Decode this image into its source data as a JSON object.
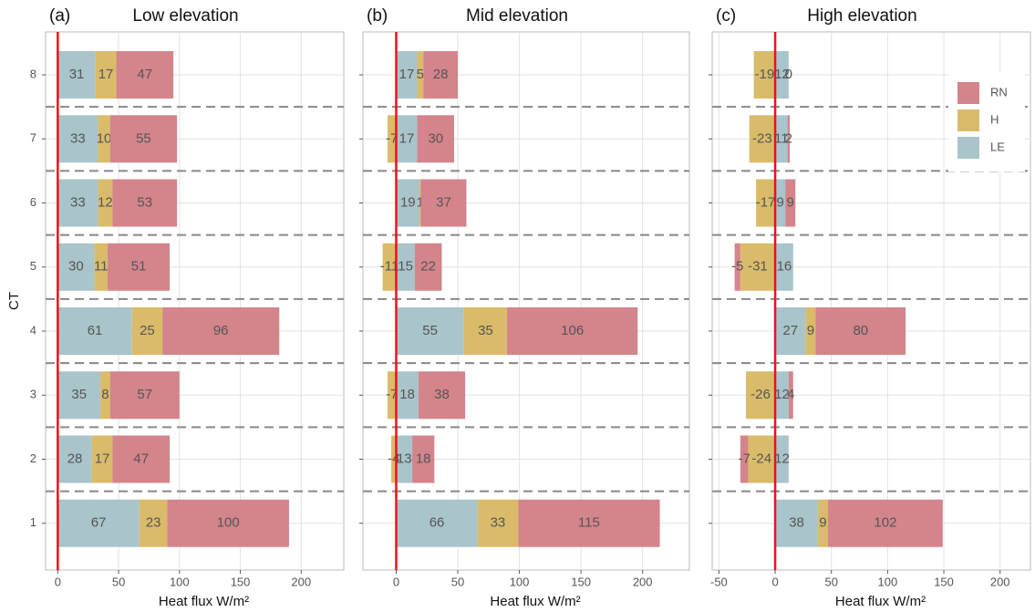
{
  "chart_data": [
    {
      "type": "bar",
      "orientation": "horizontal",
      "stacked": true,
      "tag": "(a)",
      "title": "Low elevation",
      "ylabel": "CT",
      "xlabel": "Heat flux  W/m²",
      "categories": [
        "1",
        "2",
        "3",
        "4",
        "5",
        "6",
        "7",
        "8"
      ],
      "xlim": [
        -10,
        235
      ],
      "xticks": [
        0,
        50,
        100,
        150,
        200
      ],
      "grid": true,
      "separators": true,
      "zero_line_color": "#e8141c",
      "series": [
        {
          "color": "#a9c4cb",
          "values": [
            67,
            28,
            35,
            61,
            30,
            33,
            33,
            31
          ]
        },
        {
          "color": "#d9bb6a",
          "values": [
            23,
            17,
            8,
            25,
            11,
            12,
            10,
            17
          ]
        },
        {
          "color": "#d4848b",
          "values": [
            100,
            47,
            57,
            96,
            51,
            53,
            55,
            47
          ]
        }
      ]
    },
    {
      "type": "bar",
      "orientation": "horizontal",
      "stacked": true,
      "tag": "(b)",
      "title": "Mid elevation",
      "xlabel": "Heat flux  W/m²",
      "xlim": [
        -27,
        238
      ],
      "xticks": [
        0,
        50,
        100,
        150,
        200
      ],
      "grid": true,
      "separators": true,
      "zero_line_color": "#e8141c",
      "series": [
        {
          "color": "#a9c4cb",
          "values": [
            66,
            13,
            18,
            55,
            15,
            19,
            17,
            17
          ]
        },
        {
          "color": "#d9bb6a",
          "values": [
            33,
            -4,
            -7,
            35,
            -11,
            1,
            -7,
            5
          ]
        },
        {
          "color": "#d4848b",
          "values": [
            115,
            18,
            38,
            106,
            22,
            37,
            30,
            28
          ]
        }
      ]
    },
    {
      "type": "bar",
      "orientation": "horizontal",
      "stacked": true,
      "tag": "(c)",
      "title": "High elevation",
      "xlabel": "Heat flux  W/m²",
      "legend": "top-right",
      "xlim": [
        -56,
        227
      ],
      "xticks": [
        -50,
        0,
        50,
        100,
        150,
        200
      ],
      "grid": true,
      "separators": true,
      "zero_line_color": "#e8141c",
      "series": [
        {
          "name": "LE",
          "color": "#a9c4cb",
          "values": [
            38,
            12,
            12,
            27,
            16,
            9,
            11,
            12
          ]
        },
        {
          "name": "H",
          "color": "#d9bb6a",
          "values": [
            9,
            -24,
            -26,
            9,
            -31,
            -17,
            -23,
            -19
          ]
        },
        {
          "name": "RN",
          "color": "#d4848b",
          "values": [
            102,
            -7,
            4,
            80,
            -5,
            9,
            2,
            0
          ]
        }
      ]
    }
  ]
}
